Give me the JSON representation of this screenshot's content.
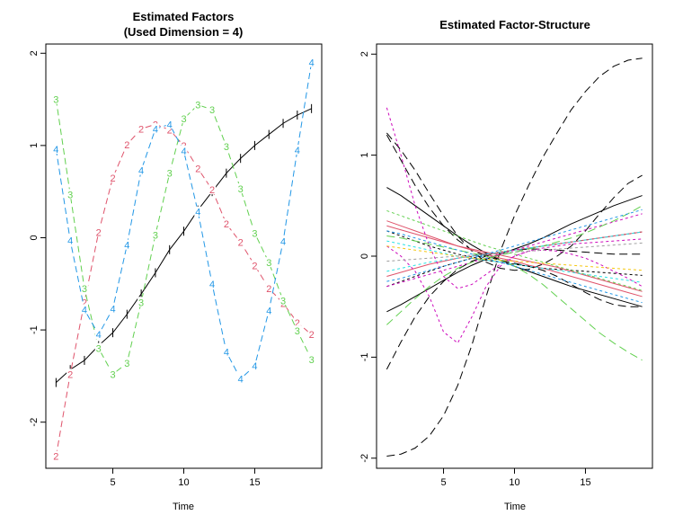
{
  "chart_data": [
    {
      "type": "line",
      "title": "Estimated Factors",
      "subtitle": "(Used Dimension = 4)",
      "xlabel": "Time",
      "ylabel": "",
      "xlim": [
        1,
        19
      ],
      "ylim": [
        -2.5,
        2.1
      ],
      "xticks": [
        "5",
        "10",
        "15"
      ],
      "yticks": [
        "-2",
        "-1",
        "0",
        "1",
        "2"
      ],
      "grid": false,
      "x": [
        1,
        2,
        3,
        4,
        5,
        6,
        7,
        8,
        9,
        10,
        11,
        12,
        13,
        14,
        15,
        16,
        17,
        18,
        19
      ],
      "series": [
        {
          "name": "1",
          "color": "#000000",
          "values": [
            -1.57,
            -1.43,
            -1.33,
            -1.17,
            -1.03,
            -0.83,
            -0.61,
            -0.38,
            -0.13,
            0.07,
            0.3,
            0.5,
            0.7,
            0.86,
            1.0,
            1.12,
            1.24,
            1.33,
            1.4
          ]
        },
        {
          "name": "2",
          "color": "#DF536B",
          "values": [
            -2.37,
            -1.48,
            -0.7,
            0.06,
            0.65,
            1.01,
            1.18,
            1.23,
            1.17,
            1.0,
            0.75,
            0.52,
            0.15,
            -0.05,
            -0.3,
            -0.55,
            -0.71,
            -0.92,
            -1.05
          ]
        },
        {
          "name": "3",
          "color": "#61D04F",
          "values": [
            1.5,
            0.47,
            -0.55,
            -1.2,
            -1.48,
            -1.36,
            -0.7,
            0.03,
            0.7,
            1.29,
            1.44,
            1.39,
            0.99,
            0.53,
            0.05,
            -0.27,
            -0.68,
            -1.01,
            -1.32
          ]
        },
        {
          "name": "4",
          "color": "#2297E6",
          "values": [
            0.96,
            -0.03,
            -0.78,
            -1.05,
            -0.77,
            -0.08,
            0.73,
            1.18,
            1.23,
            0.94,
            0.28,
            -0.5,
            -1.24,
            -1.53,
            -1.39,
            -0.79,
            -0.04,
            0.95,
            1.9
          ]
        }
      ]
    },
    {
      "type": "line",
      "title": "Estimated Factor-Structure",
      "xlabel": "Time",
      "ylabel": "",
      "xlim": [
        1,
        19
      ],
      "ylim": [
        -2.1,
        2.1
      ],
      "xticks": [
        "5",
        "10",
        "15"
      ],
      "yticks": [
        "-2",
        "-1",
        "0",
        "1",
        "2"
      ],
      "grid": false,
      "x": [
        1,
        2,
        3,
        4,
        5,
        6,
        7,
        8,
        9,
        10,
        11,
        12,
        13,
        14,
        15,
        16,
        17,
        18,
        19
      ],
      "series": [
        {
          "color": "#000000",
          "dash": "long",
          "values": [
            -1.98,
            -1.96,
            -1.9,
            -1.78,
            -1.58,
            -1.28,
            -0.88,
            -0.4,
            0.05,
            0.4,
            0.7,
            0.98,
            1.22,
            1.45,
            1.63,
            1.78,
            1.88,
            1.94,
            1.96
          ]
        },
        {
          "color": "#000000",
          "dash": "long",
          "values": [
            -1.12,
            -0.85,
            -0.6,
            -0.4,
            -0.25,
            -0.13,
            -0.05,
            0.0,
            0.04,
            0.06,
            0.07,
            0.07,
            0.06,
            0.05,
            0.04,
            0.03,
            0.02,
            0.02,
            0.02
          ]
        },
        {
          "color": "#000000",
          "dash": "long",
          "values": [
            1.22,
            1.05,
            0.85,
            0.62,
            0.4,
            0.2,
            0.05,
            -0.06,
            -0.12,
            -0.14,
            -0.13,
            -0.08,
            0.0,
            0.1,
            0.25,
            0.42,
            0.58,
            0.72,
            0.8
          ]
        },
        {
          "color": "#000000",
          "dash": "long",
          "values": [
            1.2,
            0.95,
            0.7,
            0.48,
            0.3,
            0.16,
            0.06,
            0.0,
            -0.04,
            -0.07,
            -0.1,
            -0.14,
            -0.2,
            -0.28,
            -0.36,
            -0.43,
            -0.48,
            -0.5,
            -0.5
          ]
        },
        {
          "color": "#000000",
          "dash": "solid",
          "values": [
            -0.55,
            -0.48,
            -0.4,
            -0.32,
            -0.24,
            -0.16,
            -0.09,
            -0.03,
            0.02,
            0.07,
            0.12,
            0.18,
            0.25,
            0.32,
            0.38,
            0.44,
            0.5,
            0.55,
            0.6
          ]
        },
        {
          "color": "#000000",
          "dash": "solid",
          "values": [
            0.68,
            0.6,
            0.5,
            0.4,
            0.3,
            0.2,
            0.11,
            0.03,
            -0.04,
            -0.1,
            -0.15,
            -0.2,
            -0.25,
            -0.3,
            -0.34,
            -0.38,
            -0.42,
            -0.46,
            -0.5
          ]
        },
        {
          "color": "#000000",
          "dash": "short",
          "values": [
            -0.3,
            -0.25,
            -0.2,
            -0.15,
            -0.1,
            -0.06,
            -0.02,
            0.01,
            0.04,
            0.06,
            0.08,
            0.1,
            0.12,
            0.14,
            0.16,
            0.18,
            0.2,
            0.22,
            0.24
          ]
        },
        {
          "color": "#000000",
          "dash": "short",
          "values": [
            0.25,
            0.2,
            0.15,
            0.1,
            0.06,
            0.02,
            -0.01,
            -0.04,
            -0.06,
            -0.08,
            -0.1,
            -0.12,
            -0.13,
            -0.14,
            -0.15,
            -0.16,
            -0.17,
            -0.18,
            -0.19
          ]
        },
        {
          "color": "#DF536B",
          "dash": "solid",
          "values": [
            0.35,
            0.3,
            0.25,
            0.2,
            0.15,
            0.1,
            0.06,
            0.02,
            -0.02,
            -0.05,
            -0.09,
            -0.12,
            -0.16,
            -0.2,
            -0.24,
            -0.28,
            -0.32,
            -0.36,
            -0.4
          ]
        },
        {
          "color": "#DF536B",
          "dash": "solid",
          "values": [
            0.3,
            0.26,
            0.22,
            0.18,
            0.14,
            0.1,
            0.07,
            0.04,
            0.01,
            -0.02,
            -0.05,
            -0.08,
            -0.11,
            -0.15,
            -0.19,
            -0.23,
            -0.27,
            -0.31,
            -0.35
          ]
        },
        {
          "color": "#DF536B",
          "dash": "solid",
          "values": [
            -0.2,
            -0.16,
            -0.12,
            -0.08,
            -0.05,
            -0.02,
            0.0,
            0.02,
            0.04,
            0.06,
            0.08,
            0.1,
            0.12,
            0.14,
            0.16,
            0.18,
            0.2,
            0.22,
            0.24
          ]
        },
        {
          "color": "#CD0BBC",
          "dash": "short",
          "values": [
            1.47,
            1.0,
            0.5,
            0.1,
            -0.2,
            -0.32,
            -0.28,
            -0.18,
            -0.08,
            0.0,
            0.05,
            0.08,
            0.1,
            0.12,
            0.13,
            0.14,
            0.15,
            0.16,
            0.17
          ]
        },
        {
          "color": "#CD0BBC",
          "dash": "short",
          "values": [
            0.1,
            0.0,
            -0.15,
            -0.4,
            -0.75,
            -0.86,
            -0.6,
            -0.3,
            -0.1,
            0.0,
            0.05,
            0.06,
            0.05,
            0.02,
            -0.02,
            -0.08,
            -0.15,
            -0.22,
            -0.3
          ]
        },
        {
          "color": "#CD0BBC",
          "dash": "short",
          "values": [
            -0.3,
            -0.26,
            -0.22,
            -0.18,
            -0.14,
            -0.1,
            -0.06,
            -0.02,
            0.02,
            0.06,
            0.1,
            0.14,
            0.18,
            0.22,
            0.26,
            0.3,
            0.34,
            0.38,
            0.42
          ]
        },
        {
          "color": "#61D04F",
          "dash": "long",
          "values": [
            -0.68,
            -0.55,
            -0.42,
            -0.3,
            -0.2,
            -0.12,
            -0.06,
            -0.02,
            0.01,
            0.04,
            0.07,
            0.1,
            0.14,
            0.18,
            0.23,
            0.29,
            0.35,
            0.42,
            0.5
          ]
        },
        {
          "color": "#61D04F",
          "dash": "long",
          "values": [
            0.2,
            0.18,
            0.15,
            0.12,
            0.09,
            0.06,
            0.03,
            0.0,
            -0.04,
            -0.1,
            -0.18,
            -0.28,
            -0.4,
            -0.52,
            -0.64,
            -0.76,
            -0.86,
            -0.95,
            -1.03
          ]
        },
        {
          "color": "#61D04F",
          "dash": "short",
          "values": [
            0.45,
            0.4,
            0.35,
            0.3,
            0.25,
            0.2,
            0.15,
            0.1,
            0.06,
            0.02,
            -0.02,
            -0.06,
            -0.1,
            -0.14,
            -0.18,
            -0.22,
            -0.26,
            -0.3,
            -0.34
          ]
        },
        {
          "color": "#28E2E5",
          "dash": "short",
          "values": [
            0.15,
            0.12,
            0.09,
            0.06,
            0.03,
            0.0,
            -0.02,
            -0.04,
            -0.06,
            -0.08,
            -0.1,
            -0.12,
            -0.14,
            -0.16,
            -0.18,
            -0.2,
            -0.22,
            -0.24,
            -0.26
          ]
        },
        {
          "color": "#28E2E5",
          "dash": "short",
          "values": [
            -0.15,
            -0.12,
            -0.09,
            -0.06,
            -0.04,
            -0.02,
            0.0,
            0.02,
            0.04,
            0.06,
            0.08,
            0.1,
            0.12,
            0.14,
            0.16,
            0.18,
            0.2,
            0.22,
            0.24
          ]
        },
        {
          "color": "#2297E6",
          "dash": "short",
          "values": [
            0.25,
            0.22,
            0.18,
            0.14,
            0.1,
            0.06,
            0.02,
            -0.02,
            -0.06,
            -0.1,
            -0.14,
            -0.18,
            -0.22,
            -0.26,
            -0.3,
            -0.34,
            -0.38,
            -0.42,
            -0.46
          ]
        },
        {
          "color": "#2297E6",
          "dash": "short",
          "values": [
            -0.25,
            -0.22,
            -0.18,
            -0.14,
            -0.1,
            -0.06,
            -0.02,
            0.02,
            0.06,
            0.1,
            0.14,
            0.18,
            0.22,
            0.26,
            0.3,
            0.34,
            0.38,
            0.42,
            0.46
          ]
        },
        {
          "color": "#F5C710",
          "dash": "short",
          "values": [
            0.1,
            0.08,
            0.06,
            0.04,
            0.02,
            0.0,
            -0.02,
            -0.03,
            -0.04,
            -0.05,
            -0.06,
            -0.07,
            -0.08,
            -0.09,
            -0.1,
            -0.11,
            -0.12,
            -0.13,
            -0.14
          ]
        },
        {
          "color": "#9E9E9E",
          "dash": "short",
          "values": [
            -0.05,
            -0.04,
            -0.03,
            -0.02,
            -0.01,
            0.0,
            0.01,
            0.02,
            0.03,
            0.04,
            0.05,
            0.06,
            0.07,
            0.08,
            0.09,
            0.1,
            0.11,
            0.12,
            0.13
          ]
        }
      ]
    }
  ]
}
